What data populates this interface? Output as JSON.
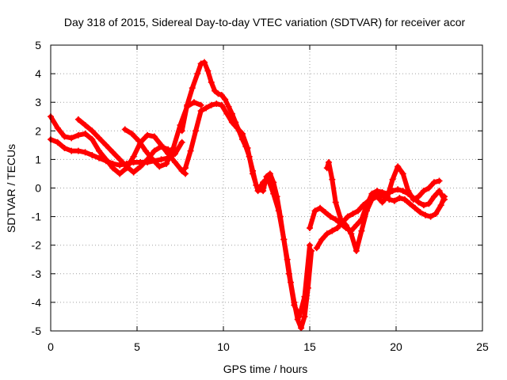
{
  "chart_data": {
    "type": "scatter",
    "title": "Day 318 of 2015, Sidereal Day-to-day VTEC variation (SDTVAR) for receiver acor",
    "xlabel": "GPS time / hours",
    "ylabel": "SDTVAR / TECUs",
    "xlim": [
      0,
      25
    ],
    "ylim": [
      -5,
      5
    ],
    "xticks": [
      "0",
      "5",
      "10",
      "15",
      "20",
      "25"
    ],
    "yticks": [
      "5",
      "4",
      "3",
      "2",
      "1",
      "0",
      "-1",
      "-2",
      "-3",
      "-4",
      "-5"
    ],
    "grid": true,
    "marker": "plus",
    "color": "#ff0000",
    "series": [
      {
        "x": [
          0,
          0.4,
          0.8,
          1.2,
          1.6,
          2.0,
          2.4,
          2.8,
          3.2,
          3.6,
          4.0,
          4.4,
          4.8,
          5.2,
          5.6,
          6.0,
          6.4,
          6.8,
          7.2,
          7.6,
          7.8
        ],
        "y": [
          2.5,
          2.1,
          1.8,
          1.75,
          1.85,
          1.9,
          1.7,
          1.3,
          1.0,
          0.7,
          0.5,
          0.7,
          1.1,
          1.6,
          1.85,
          1.8,
          1.5,
          1.2,
          0.9,
          0.6,
          0.5
        ]
      },
      {
        "x": [
          1.6,
          2.0,
          2.4,
          2.8,
          3.2,
          3.6,
          4.0,
          4.4,
          4.8,
          5.2,
          5.6,
          6.0,
          6.4,
          6.8,
          7.2
        ],
        "y": [
          2.4,
          2.2,
          2.0,
          1.75,
          1.5,
          1.25,
          1.0,
          0.75,
          0.55,
          0.75,
          1.0,
          1.3,
          1.45,
          1.35,
          1.2
        ]
      },
      {
        "x": [
          4.3,
          4.7,
          5.1,
          5.5,
          5.9,
          6.3,
          6.7,
          7.1,
          7.5,
          7.9,
          8.3,
          8.7
        ],
        "y": [
          2.05,
          1.9,
          1.65,
          1.3,
          1.0,
          0.75,
          0.85,
          1.4,
          2.2,
          2.85,
          3.0,
          2.9
        ]
      },
      {
        "x": [
          0,
          0.4,
          0.8,
          1.2,
          1.6,
          2.0,
          2.4,
          2.8,
          3.2,
          3.6,
          4.0,
          4.4,
          4.8,
          5.2,
          5.6,
          6.0,
          6.4,
          6.8,
          7.2,
          7.6
        ],
        "y": [
          1.7,
          1.6,
          1.4,
          1.3,
          1.3,
          1.25,
          1.15,
          1.05,
          0.95,
          0.85,
          0.8,
          0.85,
          0.9,
          0.9,
          0.9,
          0.95,
          1.0,
          1.05,
          1.2,
          1.6
        ]
      },
      {
        "x": [
          7.6,
          7.9,
          8.2,
          8.5,
          8.7,
          8.9,
          9.1,
          9.3,
          9.5,
          9.7,
          9.9,
          10.1,
          10.3,
          10.5,
          10.7,
          10.9,
          11.1,
          11.3,
          11.5,
          11.7,
          11.9,
          12.1,
          12.3,
          12.5,
          12.7,
          12.9,
          13.1,
          13.3,
          13.5,
          13.7,
          13.9,
          14.1,
          14.3,
          14.5,
          14.7,
          14.9,
          15.1
        ],
        "y": [
          2.0,
          2.9,
          3.5,
          4.0,
          4.35,
          4.4,
          4.1,
          3.7,
          3.4,
          3.3,
          3.25,
          3.1,
          2.85,
          2.6,
          2.3,
          2.0,
          1.7,
          1.45,
          1.1,
          0.6,
          0.1,
          -0.05,
          -0.1,
          0.4,
          0.5,
          0.2,
          -0.3,
          -1.0,
          -1.8,
          -2.5,
          -3.3,
          -4.0,
          -4.6,
          -4.9,
          -4.5,
          -3.5,
          -2.2
        ]
      },
      {
        "x": [
          7.8,
          8.1,
          8.4,
          8.7,
          9.0,
          9.3,
          9.6,
          9.9,
          10.2,
          10.5,
          10.8,
          11.1,
          11.4,
          11.7,
          12.0,
          12.3,
          12.6,
          12.9,
          13.2,
          13.5,
          13.8,
          14.1,
          14.4,
          14.7,
          15.0
        ],
        "y": [
          0.7,
          1.3,
          2.0,
          2.7,
          2.8,
          2.9,
          2.95,
          2.9,
          2.6,
          2.3,
          2.1,
          1.9,
          1.4,
          0.5,
          -0.1,
          0.2,
          0.3,
          -0.2,
          -0.8,
          -1.8,
          -3.0,
          -4.1,
          -4.5,
          -3.8,
          -2.0
        ]
      },
      {
        "x": [
          15.0,
          15.3,
          15.6,
          15.9,
          16.2,
          16.5,
          16.8,
          17.1,
          17.4,
          17.7,
          18.0,
          18.3,
          18.6,
          18.9,
          19.2,
          19.5,
          19.8,
          20.1,
          20.4,
          20.7,
          21.0,
          21.3,
          21.6,
          21.9,
          22.2,
          22.5,
          22.8
        ],
        "y": [
          -1.4,
          -0.8,
          -0.7,
          -0.85,
          -1.0,
          -1.1,
          -1.25,
          -1.4,
          -1.5,
          -1.3,
          -1.1,
          -0.6,
          -0.2,
          -0.1,
          -0.15,
          -0.2,
          -0.1,
          -0.05,
          -0.1,
          -0.2,
          -0.35,
          -0.5,
          -0.6,
          -0.55,
          -0.3,
          -0.1,
          -0.4
        ]
      },
      {
        "x": [
          16.0,
          16.1,
          16.3,
          16.5,
          16.8,
          17.1,
          17.4,
          17.7,
          18.0,
          18.3,
          18.6,
          18.9,
          19.2,
          19.5,
          19.8,
          20.1,
          20.4,
          20.7,
          21.0,
          21.3,
          21.6,
          21.9,
          22.2,
          22.5
        ],
        "y": [
          0.7,
          0.9,
          0.3,
          -0.5,
          -1.1,
          -1.3,
          -1.6,
          -2.2,
          -1.5,
          -0.8,
          -0.4,
          -0.3,
          -0.5,
          -0.3,
          0.3,
          0.75,
          0.5,
          -0.1,
          -0.4,
          -0.3,
          -0.1,
          0.0,
          0.2,
          0.25
        ]
      },
      {
        "x": [
          15.4,
          15.7,
          16.0,
          16.3,
          16.6,
          16.9,
          17.2,
          17.5,
          17.8,
          18.1,
          18.4,
          18.7,
          19.0,
          19.3,
          19.6,
          19.9,
          20.2,
          20.5,
          20.8,
          21.1,
          21.4,
          21.7,
          22.0,
          22.3,
          22.6,
          22.8
        ],
        "y": [
          -2.1,
          -1.8,
          -1.6,
          -1.5,
          -1.4,
          -1.2,
          -1.0,
          -0.9,
          -0.8,
          -0.6,
          -0.45,
          -0.3,
          -0.25,
          -0.3,
          -0.4,
          -0.45,
          -0.35,
          -0.4,
          -0.55,
          -0.7,
          -0.85,
          -0.95,
          -1.0,
          -0.9,
          -0.6,
          -0.3
        ]
      }
    ]
  }
}
